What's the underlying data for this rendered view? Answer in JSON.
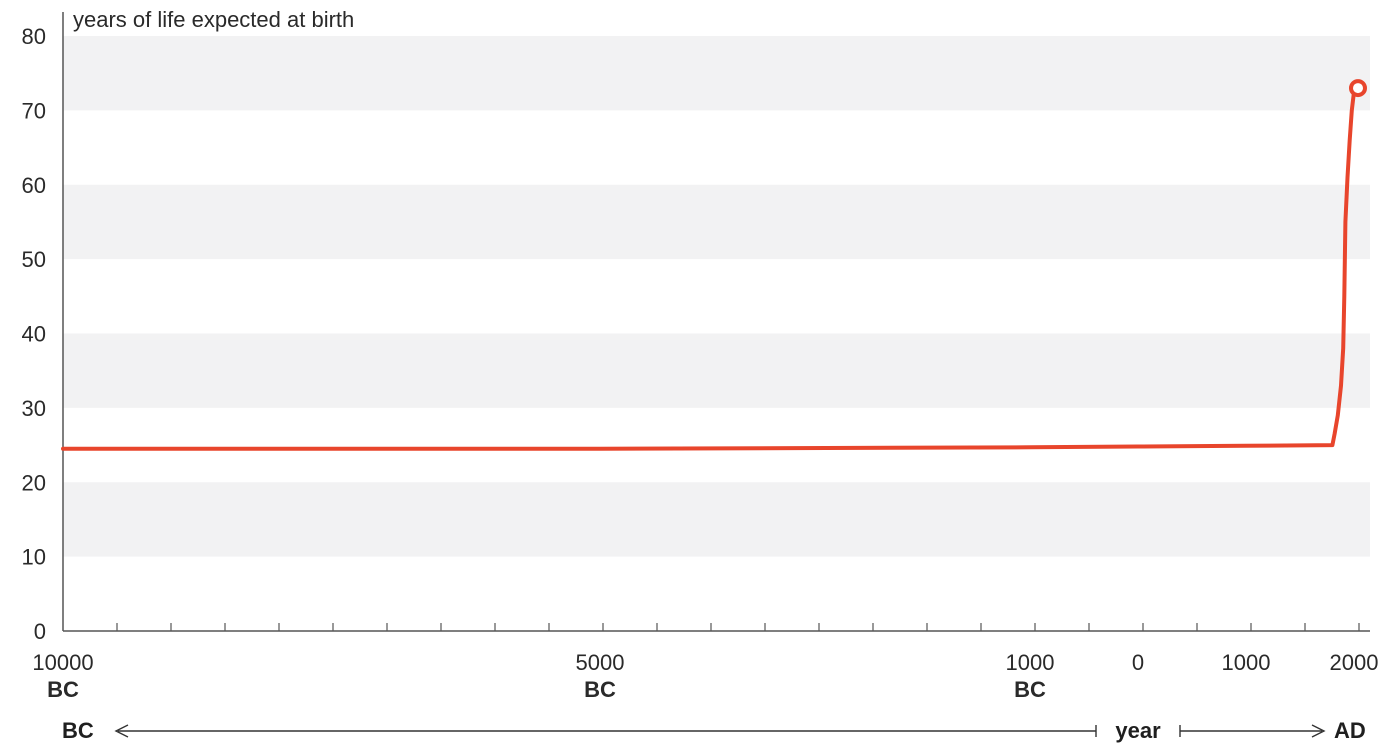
{
  "chart_data": {
    "type": "line",
    "title": "",
    "ylabel": "years of life expected at birth",
    "xlabel": "year",
    "ylim": [
      0,
      80
    ],
    "yticks": [
      0,
      10,
      20,
      30,
      40,
      50,
      60,
      70,
      80
    ],
    "grid": "alternating horizontal bands",
    "series_color": "#e8452c",
    "band_color": "#f2f2f3",
    "axis_color": "#555555",
    "x_axis_note": "time axis is compressed: 10000 BC to 1000 BC spans most of the width, then 1000 BC to 2000 AD",
    "x_labels": [
      {
        "year": -10000,
        "line1": "10000",
        "line2": "BC"
      },
      {
        "year": -5000,
        "line1": "5000",
        "line2": "BC"
      },
      {
        "year": -1000,
        "line1": "1000",
        "line2": "BC"
      },
      {
        "year": 0,
        "line1": "0",
        "line2": ""
      },
      {
        "year": 1000,
        "line1": "1000",
        "line2": ""
      },
      {
        "year": 2000,
        "line1": "2000",
        "line2": ""
      }
    ],
    "era_labels": {
      "left": "BC",
      "center": "year",
      "right": "AD"
    },
    "series": [
      {
        "points": [
          {
            "x": -10000,
            "y": 24.5
          },
          {
            "x": -5000,
            "y": 24.5
          },
          {
            "x": -1000,
            "y": 24.7
          },
          {
            "x": 0,
            "y": 24.8
          },
          {
            "x": 1000,
            "y": 24.9
          },
          {
            "x": 1800,
            "y": 25.0
          },
          {
            "x": 1820,
            "y": 26.5
          },
          {
            "x": 1850,
            "y": 29.0
          },
          {
            "x": 1880,
            "y": 33.0
          },
          {
            "x": 1900,
            "y": 38.0
          },
          {
            "x": 1910,
            "y": 45.0
          },
          {
            "x": 1920,
            "y": 55.0
          },
          {
            "x": 1940,
            "y": 61.0
          },
          {
            "x": 1960,
            "y": 66.0
          },
          {
            "x": 1980,
            "y": 70.0
          },
          {
            "x": 2000,
            "y": 72.5
          },
          {
            "x": 2010,
            "y": 73.0
          }
        ],
        "end_marker": "open-circle"
      }
    ]
  }
}
